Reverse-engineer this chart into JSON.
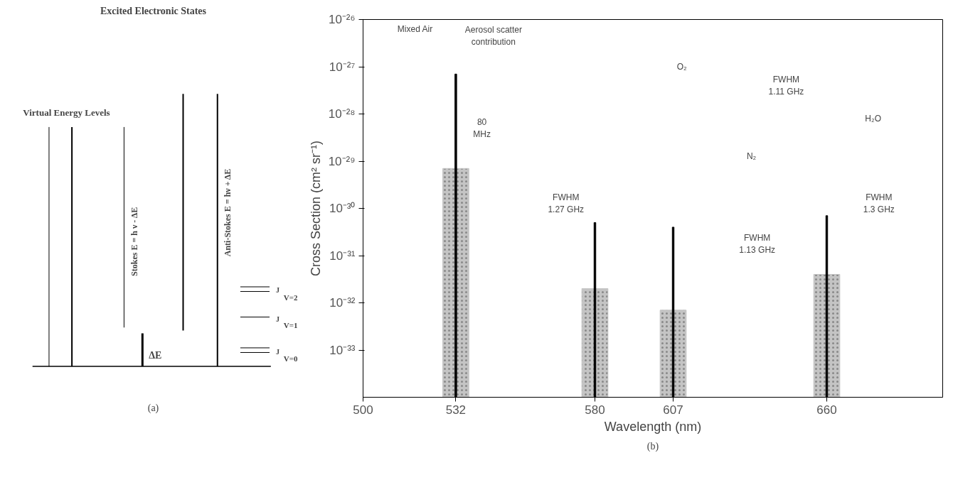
{
  "chart_data": [
    {
      "type": "other",
      "title": "Excited Electronic States",
      "annotations": [
        "Virtual Energy Levels",
        "Stokes  E = h ν - ΔE",
        "Anti-Stokes  E = hν + ΔE",
        "ΔE",
        "J",
        "J",
        "J",
        "V=2",
        "V=1",
        "V=0",
        "(a)"
      ]
    },
    {
      "type": "bar",
      "xlabel": "Wavelength (nm)",
      "ylabel": "Cross Section (cm² sr⁻¹)",
      "log": "y",
      "xlim": [
        500,
        700
      ],
      "xticks": [
        500,
        532,
        580,
        607,
        660
      ],
      "ylim": [
        1e-34,
        1e-26
      ],
      "yticks": [
        {
          "value": 1e-33,
          "label": "10⁻³³"
        },
        {
          "value": 1e-32,
          "label": "10⁻³²"
        },
        {
          "value": 1e-31,
          "label": "10⁻³¹"
        },
        {
          "value": 1e-30,
          "label": "10⁻³⁰"
        },
        {
          "value": 1e-29,
          "label": "10⁻²⁹"
        },
        {
          "value": 1e-28,
          "label": "10⁻²⁸"
        },
        {
          "value": 1e-27,
          "label": "10⁻²⁷"
        },
        {
          "value": 1e-26,
          "label": "10⁻²⁶"
        }
      ],
      "grid": false,
      "series": [
        {
          "type": "bar",
          "color": "#c4c4c4",
          "x": [
            532,
            580,
            607,
            660
          ],
          "values": [
            7e-30,
            2e-32,
            7e-33,
            4e-32
          ]
        },
        {
          "type": "bar",
          "color": "#000000",
          "x": [
            532,
            580,
            607,
            660
          ],
          "values": [
            7e-28,
            5e-31,
            4e-31,
            7e-31
          ]
        }
      ],
      "annotations": [
        "Mixed Air",
        "Aerosol scatter\ncontribution",
        "80\nMHz",
        "FWHM\n1.27 GHz",
        "O₂",
        "FWHM\n1.11 GHz",
        "N₂",
        "FWHM\n1.13 GHz",
        "H₂O",
        "FWHM\n1.3 GHz",
        "(b)"
      ]
    }
  ]
}
